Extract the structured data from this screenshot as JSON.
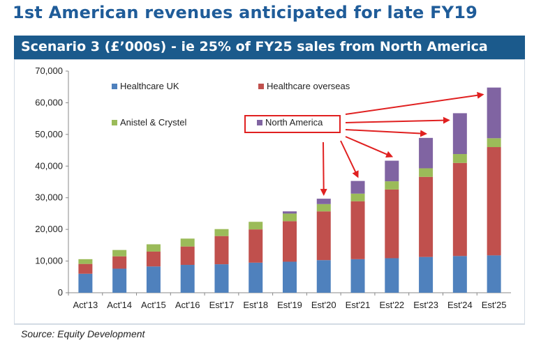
{
  "title": "1st American revenues anticipated for late FY19",
  "banner": "Scenario 3 (£’000s) - ie 25% of FY25 sales from North America",
  "source": "Source: Equity Development",
  "colors": {
    "Healthcare UK": "#4f81bd",
    "Healthcare overseas": "#c0504d",
    "Anistel & Crystel": "#9bbb59",
    "North America": "#8064a2",
    "arrow": "#e02020"
  },
  "chart_data": {
    "type": "bar",
    "stacked": true,
    "categories": [
      "Act'13",
      "Act'14",
      "Act'15",
      "Act'16",
      "Est'17",
      "Est'18",
      "Est'19",
      "Est'20",
      "Est'21",
      "Est'22",
      "Est'23",
      "Est'24",
      "Est'25"
    ],
    "series": [
      {
        "name": "Healthcare UK",
        "values": [
          6000,
          7600,
          8300,
          8800,
          9000,
          9500,
          9800,
          10300,
          10600,
          10900,
          11300,
          11600,
          11800
        ]
      },
      {
        "name": "Healthcare overseas",
        "values": [
          3100,
          3900,
          4700,
          5800,
          8900,
          10500,
          12800,
          15400,
          18300,
          21700,
          25300,
          29400,
          34200
        ]
      },
      {
        "name": "Anistel & Crystel",
        "values": [
          1500,
          2000,
          2300,
          2500,
          2200,
          2400,
          2400,
          2300,
          2400,
          2600,
          2700,
          2800,
          2800
        ]
      },
      {
        "name": "North America",
        "values": [
          0,
          0,
          0,
          0,
          0,
          0,
          700,
          1700,
          4000,
          6500,
          9600,
          12900,
          16000
        ]
      }
    ],
    "ylim": [
      0,
      70000
    ],
    "yticks": [
      "0",
      "10,000",
      "20,000",
      "30,000",
      "40,000",
      "50,000",
      "60,000",
      "70,000"
    ],
    "grid": false,
    "legend": "top-left",
    "annotation": "red arrows from North America legend entry to Est'20–Est'25 bars"
  }
}
